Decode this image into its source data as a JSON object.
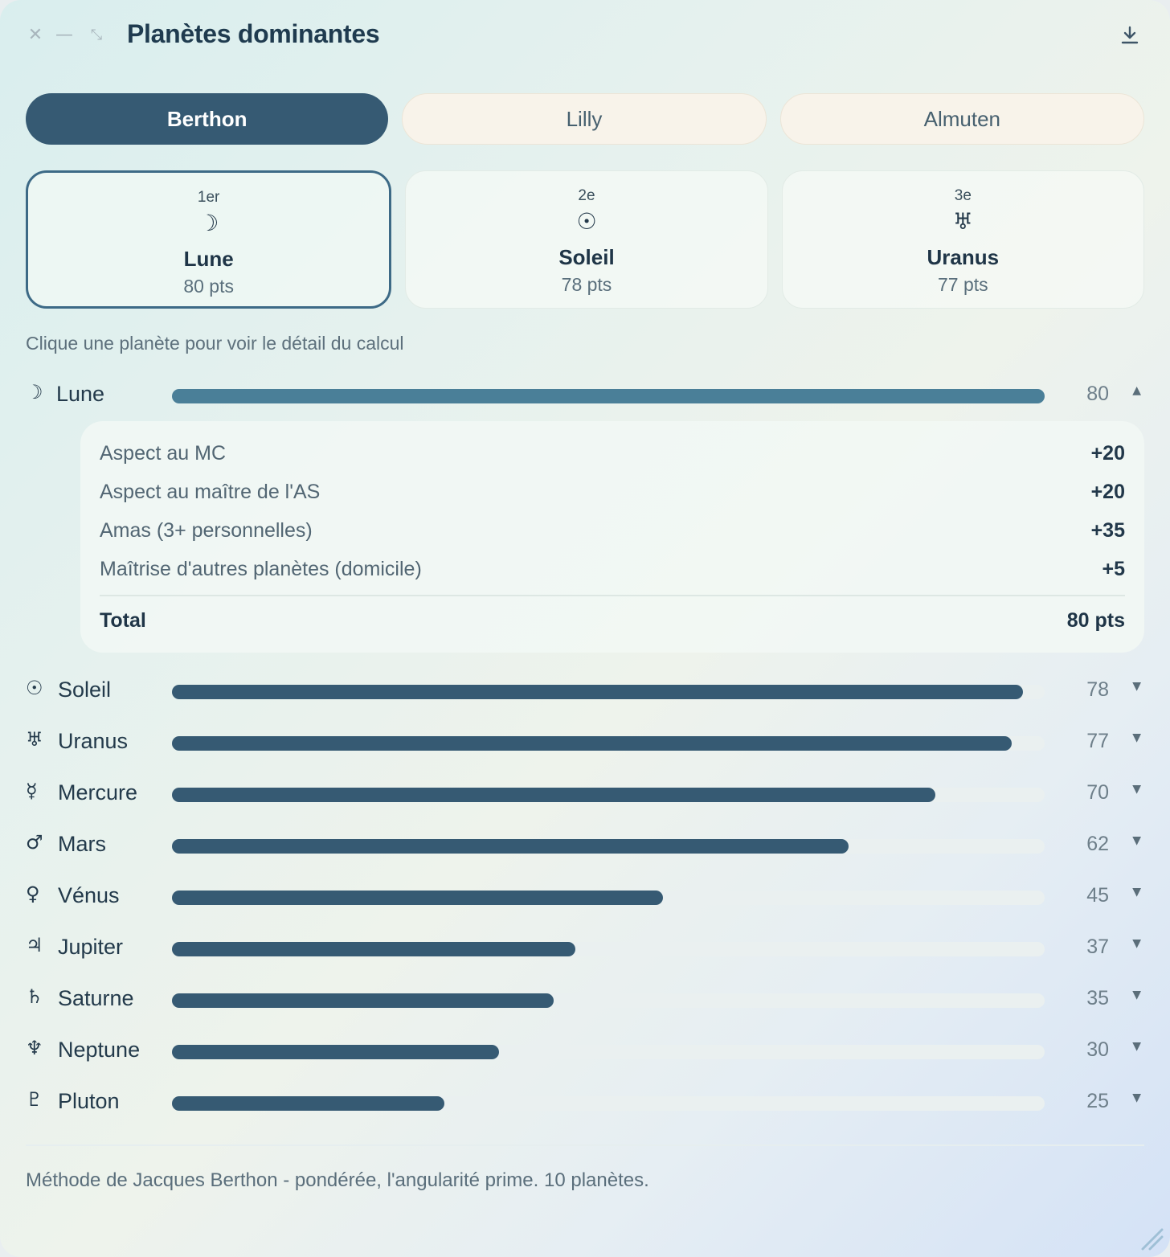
{
  "window": {
    "title": "Planètes dominantes",
    "close_glyph": "✕",
    "minimize_glyph": "—",
    "maximize_glyph": "⤡"
  },
  "tabs": [
    {
      "label": "Berthon",
      "active": true
    },
    {
      "label": "Lilly",
      "active": false
    },
    {
      "label": "Almuten",
      "active": false
    }
  ],
  "podium": [
    {
      "rank": "1er",
      "symbol": "☽",
      "name": "Lune",
      "points": "80 pts",
      "selected": true
    },
    {
      "rank": "2e",
      "symbol": "☉",
      "name": "Soleil",
      "points": "78 pts",
      "selected": false
    },
    {
      "rank": "3e",
      "symbol": "♅",
      "name": "Uranus",
      "points": "77 pts",
      "selected": false
    }
  ],
  "hint": "Clique une planète pour voir le détail du calcul",
  "planets": [
    {
      "symbol": "☽",
      "name": "Lune",
      "score": 80,
      "value": "80",
      "expanded": true
    },
    {
      "symbol": "☉",
      "name": "Soleil",
      "score": 78,
      "value": "78",
      "expanded": false
    },
    {
      "symbol": "♅",
      "name": "Uranus",
      "score": 77,
      "value": "77",
      "expanded": false
    },
    {
      "symbol": "☿",
      "name": "Mercure",
      "score": 70,
      "value": "70",
      "expanded": false
    },
    {
      "symbol": "♂",
      "name": "Mars",
      "score": 62,
      "value": "62",
      "expanded": false
    },
    {
      "symbol": "♀",
      "name": "Vénus",
      "score": 45,
      "value": "45",
      "expanded": false
    },
    {
      "symbol": "♃",
      "name": "Jupiter",
      "score": 37,
      "value": "37",
      "expanded": false
    },
    {
      "symbol": "♄",
      "name": "Saturne",
      "score": 35,
      "value": "35",
      "expanded": false
    },
    {
      "symbol": "♆",
      "name": "Neptune",
      "score": 30,
      "value": "30",
      "expanded": false
    },
    {
      "symbol": "♇",
      "name": "Pluton",
      "score": 25,
      "value": "25",
      "expanded": false
    }
  ],
  "score_max": 80,
  "detail": {
    "items": [
      {
        "label": "Aspect au MC",
        "value": "+20"
      },
      {
        "label": "Aspect au maître de l'AS",
        "value": "+20"
      },
      {
        "label": "Amas (3+ personnelles)",
        "value": "+35"
      },
      {
        "label": "Maîtrise d'autres planètes (domicile)",
        "value": "+5"
      }
    ],
    "total_label": "Total",
    "total_value": "80 pts"
  },
  "footer": "Méthode de Jacques Berthon - pondérée, l'angularité prime. 10 planètes.",
  "colors": {
    "accent": "#365a73",
    "bar_open": "#4a7f98",
    "track": "#eaf0f0"
  }
}
